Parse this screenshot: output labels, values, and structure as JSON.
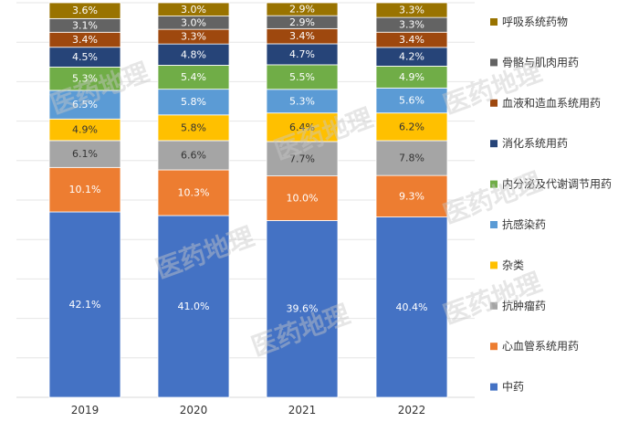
{
  "chart_data": {
    "type": "bar",
    "stacked": true,
    "percent": true,
    "categories": [
      "2019",
      "2020",
      "2021",
      "2022"
    ],
    "ylim": [
      0,
      100
    ],
    "legend_position": "right",
    "series": [
      {
        "name": "中药",
        "color": "#4472C4",
        "values": [
          42.1,
          41.0,
          39.6,
          40.4
        ]
      },
      {
        "name": "心血管系统用药",
        "color": "#ED7D31",
        "values": [
          10.1,
          10.3,
          10.0,
          9.3
        ]
      },
      {
        "name": "抗肿瘤药",
        "color": "#A5A5A5",
        "values": [
          6.1,
          6.6,
          7.7,
          7.8
        ]
      },
      {
        "name": "杂类",
        "color": "#FFC000",
        "values": [
          4.9,
          5.8,
          6.4,
          6.2
        ]
      },
      {
        "name": "抗感染药",
        "color": "#5B9BD5",
        "values": [
          6.5,
          5.8,
          5.3,
          5.6
        ]
      },
      {
        "name": "内分泌及代谢调节用药",
        "color": "#70AD47",
        "values": [
          5.3,
          5.4,
          5.5,
          4.9
        ]
      },
      {
        "name": "消化系统用药",
        "color": "#264478",
        "values": [
          4.5,
          4.8,
          4.7,
          4.2
        ]
      },
      {
        "name": "血液和造血系统用药",
        "color": "#9E480E",
        "values": [
          3.4,
          3.3,
          3.4,
          3.4
        ]
      },
      {
        "name": "骨骼与肌肉用药",
        "color": "#636363",
        "values": [
          3.1,
          3.0,
          2.9,
          3.3
        ]
      },
      {
        "name": "呼吸系统药物",
        "color": "#997300",
        "values": [
          3.6,
          3.0,
          2.9,
          3.3
        ]
      }
    ],
    "value_suffix": "%"
  },
  "watermark": "医药地理"
}
